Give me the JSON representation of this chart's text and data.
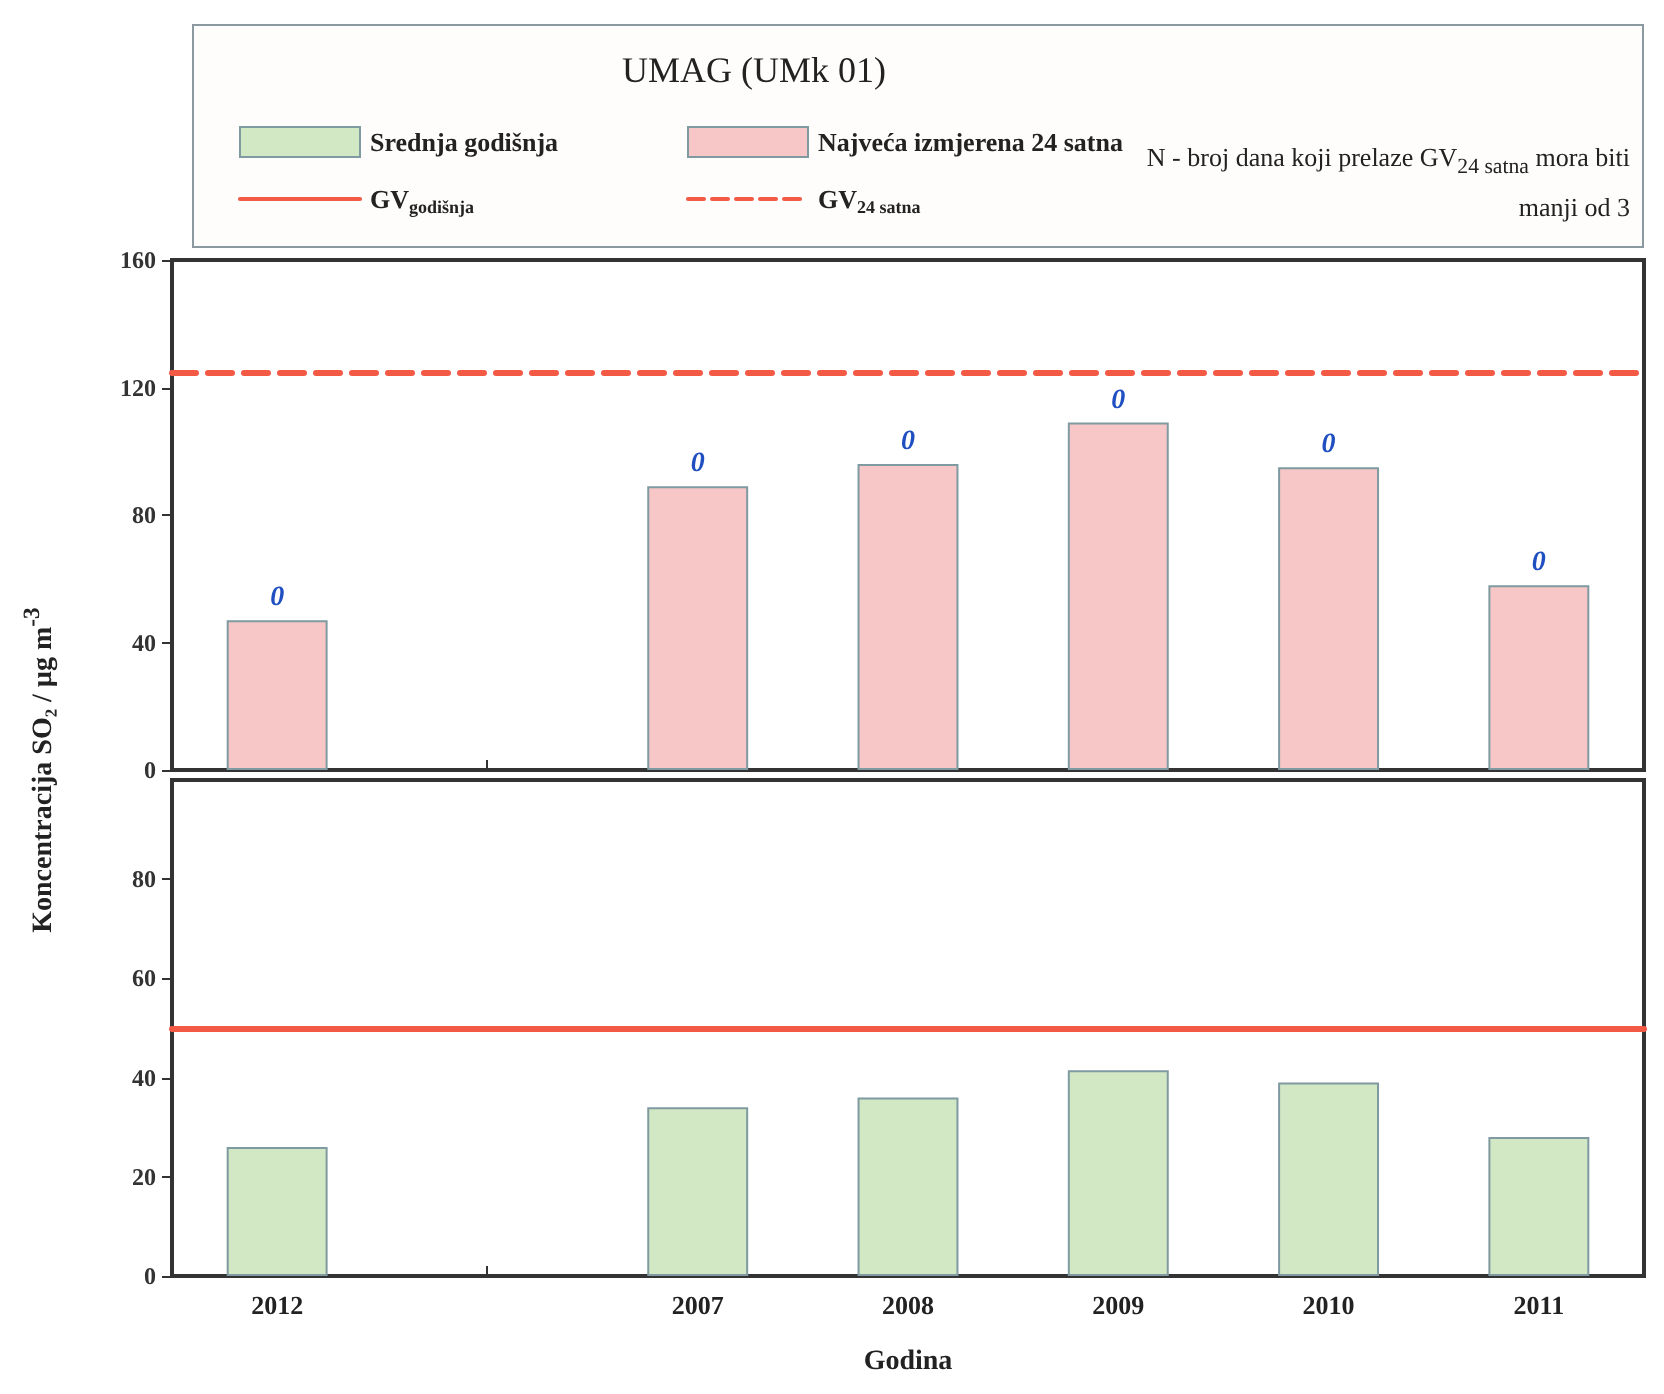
{
  "chart_data": [
    {
      "type": "bar",
      "title": "UMAG (UMk 01)",
      "ylabel": "Koncentracija SO₂ / µg m$^{-3}$",
      "categories": [
        "2012",
        null,
        "2007",
        "2008",
        "2009",
        "2010",
        "2011"
      ],
      "series": [
        {
          "name": "Najveća izmjerena 24 satna",
          "color": "#f7c6c6",
          "values": [
            47,
            null,
            89,
            96,
            109,
            95,
            58
          ]
        }
      ],
      "ylim": [
        0,
        160
      ],
      "yticks": [
        0,
        40,
        80,
        120,
        160
      ],
      "tick_labels": "y",
      "grid": false,
      "legend": "top",
      "ref_lines": [
        {
          "axis": "y",
          "value": 125,
          "label": "GV$_{24 satna}$",
          "color": "#f25a45",
          "line_style": "dashed"
        }
      ],
      "annotations": [
        "N - broj dana koji prelaze GV$_{24 satna}$ mora biti manji od 3",
        {
          "text": "0",
          "x": "2012",
          "y": 47
        },
        {
          "text": "0",
          "x": "2007",
          "y": 89
        },
        {
          "text": "0",
          "x": "2008",
          "y": 96
        },
        {
          "text": "0",
          "x": "2009",
          "y": 109
        },
        {
          "text": "0",
          "x": "2010",
          "y": 95
        },
        {
          "text": "0",
          "x": "2011",
          "y": 58
        }
      ]
    },
    {
      "type": "bar",
      "xlabel": "Godina",
      "categories": [
        "2012",
        null,
        "2007",
        "2008",
        "2009",
        "2010",
        "2011"
      ],
      "series": [
        {
          "name": "Srednja godišnja",
          "color": "#d2e7c3",
          "values": [
            26,
            null,
            34,
            36,
            41.5,
            39,
            28
          ]
        }
      ],
      "ylim": [
        0,
        100
      ],
      "yticks": [
        0,
        20,
        40,
        60,
        80
      ],
      "grid": false,
      "legend": "top",
      "ref_lines": [
        {
          "axis": "y",
          "value": 50,
          "label": "GV$_{godišnja}$",
          "color": "#f25a45",
          "line_style": "solid"
        }
      ]
    }
  ]
}
